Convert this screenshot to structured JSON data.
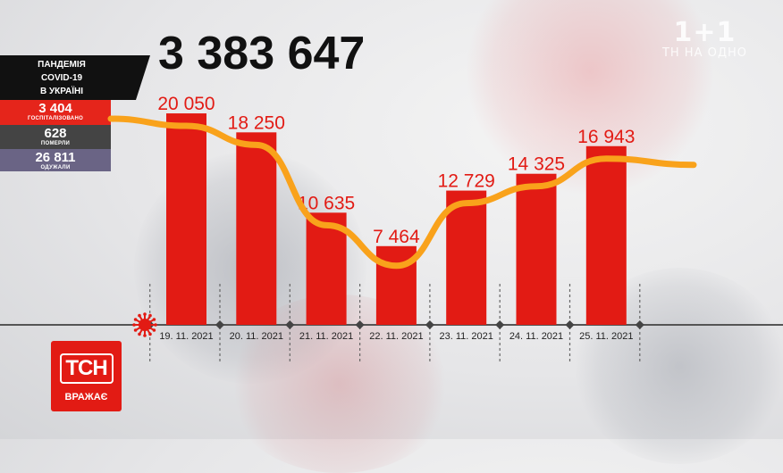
{
  "watermark": {
    "logo": "1+1",
    "sub": "ТН НА ОДНО"
  },
  "headline_total": "3 383 647",
  "panel": {
    "title_lines": [
      "ПАНДЕМІЯ",
      "COVID-19",
      "В УКРАЇНІ"
    ],
    "hospitalized": {
      "value": "3 404",
      "label": "ГОСПІТАЛІЗОВАНО"
    },
    "deaths": {
      "value": "628",
      "label": "ПОМЕРЛИ"
    },
    "recovered": {
      "value": "26 811",
      "label": "ОДУЖАЛИ"
    }
  },
  "brand": {
    "logo": "ТСН",
    "slogan": "ВРАЖАЄ"
  },
  "colors": {
    "bar": "#e21b14",
    "trend": "#f9a21b",
    "axis": "#555555",
    "label": "#e21b14"
  },
  "chart_data": {
    "type": "bar",
    "categories": [
      "19. 11. 2021",
      "20. 11. 2021",
      "21. 11. 2021",
      "22. 11. 2021",
      "23. 11. 2021",
      "24. 11. 2021",
      "25. 11. 2021"
    ],
    "values": [
      20050,
      18250,
      10635,
      7464,
      12729,
      14325,
      16943
    ],
    "value_labels": [
      "20 050",
      "18 250",
      "10 635",
      "7 464",
      "12 729",
      "14 325",
      "16 943"
    ],
    "trend_line": {
      "style": "smoothed trend across bars, extends beyond first and last bar"
    },
    "ylim": [
      0,
      22000
    ],
    "grid": false,
    "legend": "none"
  }
}
